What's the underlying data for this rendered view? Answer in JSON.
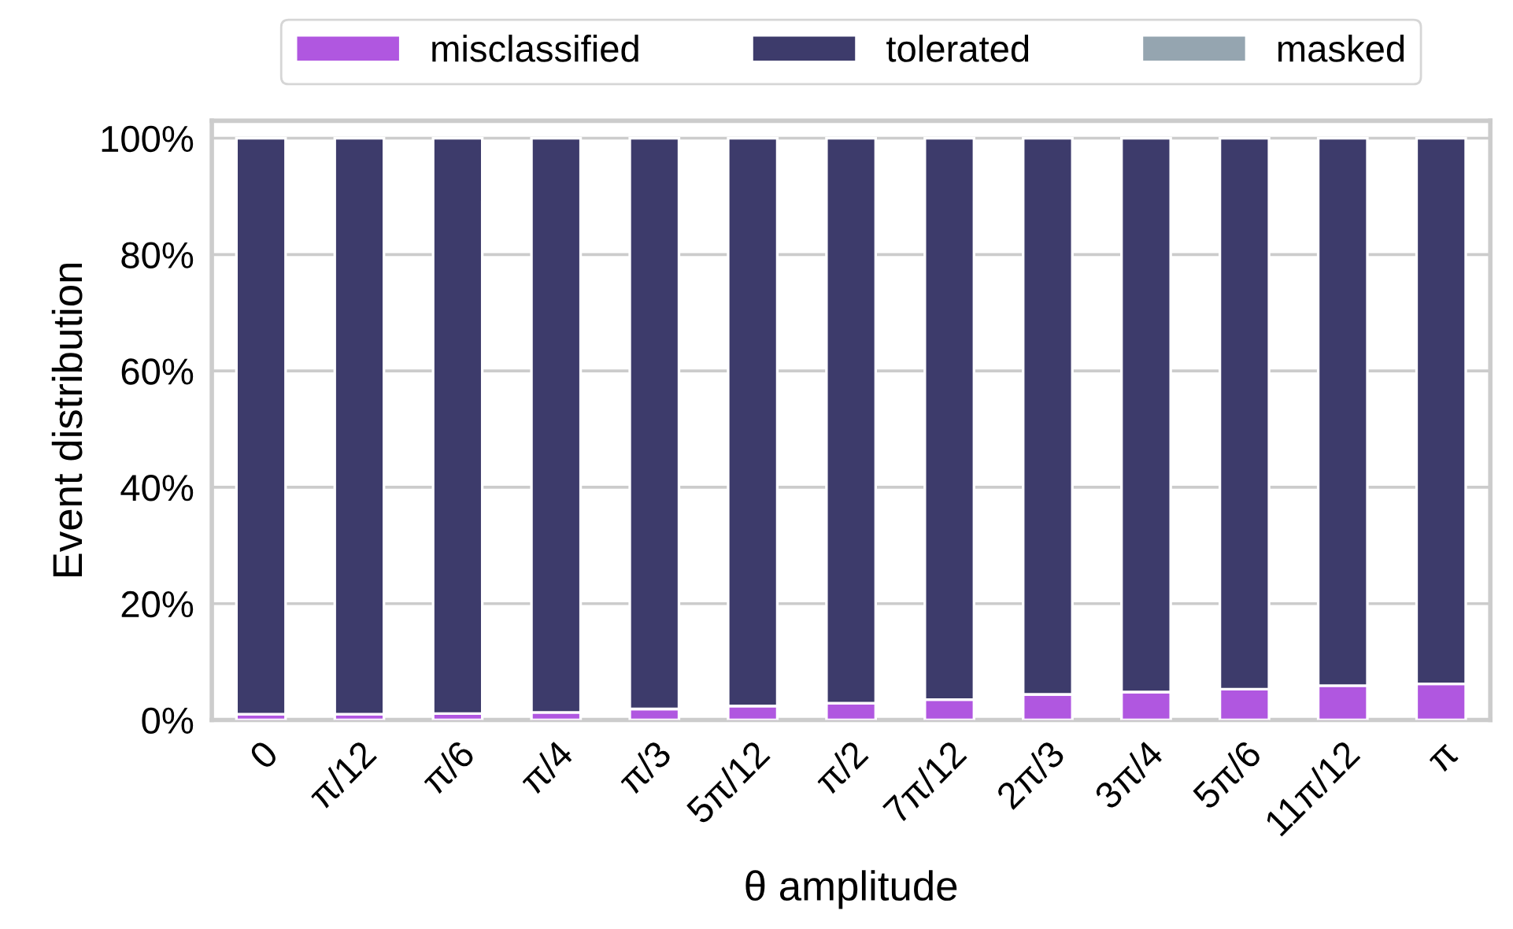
{
  "chart_data": {
    "type": "bar",
    "stacked": true,
    "xlabel": "θ amplitude",
    "ylabel": "Event distribution",
    "categories": [
      "0",
      "π/12",
      "π/6",
      "π/4",
      "π/3",
      "5π/12",
      "π/2",
      "7π/12",
      "2π/3",
      "3π/4",
      "5π/6",
      "11π/12",
      "π"
    ],
    "series": [
      {
        "name": "misclassified",
        "color": "#b057e0",
        "values": [
          1.0,
          1.0,
          1.1,
          1.3,
          1.9,
          2.4,
          2.9,
          3.5,
          4.4,
          4.8,
          5.3,
          5.9,
          6.2
        ]
      },
      {
        "name": "tolerated",
        "color": "#3d3b6b",
        "values": [
          99.0,
          99.0,
          98.9,
          98.7,
          98.1,
          97.6,
          97.1,
          96.5,
          95.6,
          95.2,
          94.7,
          94.1,
          93.8
        ]
      },
      {
        "name": "masked",
        "color": "#95a5b0",
        "values": [
          0,
          0,
          0,
          0,
          0,
          0,
          0,
          0,
          0,
          0,
          0,
          0,
          0
        ]
      }
    ],
    "ylim": [
      0,
      103
    ],
    "yticks": [
      {
        "value": 0,
        "label": "0%"
      },
      {
        "value": 20,
        "label": "20%"
      },
      {
        "value": 40,
        "label": "40%"
      },
      {
        "value": 60,
        "label": "60%"
      },
      {
        "value": 80,
        "label": "80%"
      },
      {
        "value": 100,
        "label": "100%"
      }
    ],
    "grid": "y",
    "legend": "top"
  }
}
